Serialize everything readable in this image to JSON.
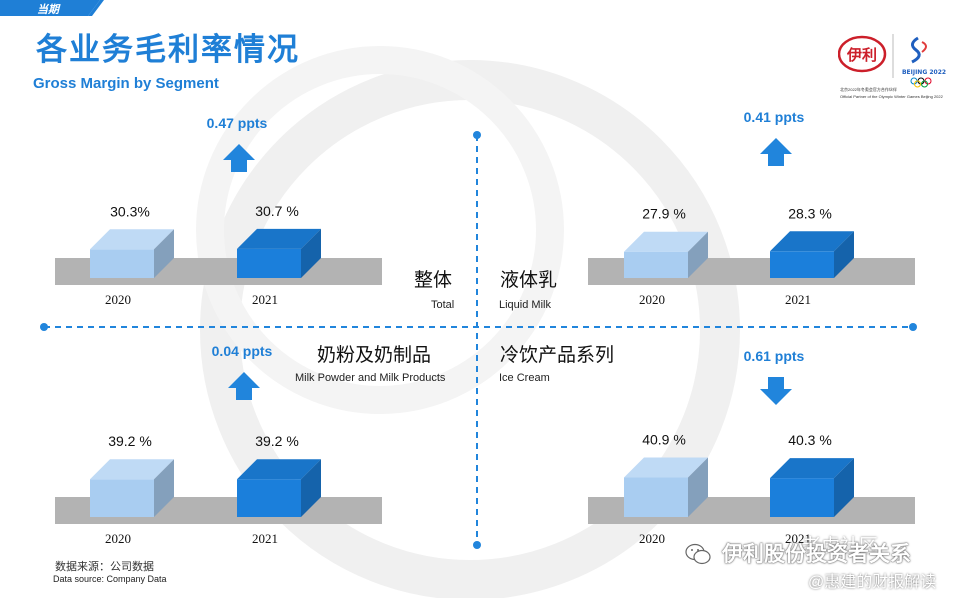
{
  "header": {
    "tag": "当期",
    "title_cn": "各业务毛利率情况",
    "title_en": "Gross Margin by Segment"
  },
  "logo": {
    "brand_text": "伊利",
    "partner_text": "BEIJING 2022",
    "caption_cn": "北京2022年冬奥会官方合作伙伴",
    "caption_en": "Official Partner of the Olympic Winter Games Beijing 2022"
  },
  "source": {
    "cn": "数据来源：公司数据",
    "en": "Data source: Company Data"
  },
  "watermark": {
    "line1": "伊利股份投资者关系",
    "line2": "老虎社区",
    "line3": "@惠建的财报解读"
  },
  "colors": {
    "bar_2020": "#a9cdf1",
    "bar_2021": "#1b7fdb",
    "arrow": "#2185dc",
    "base": "#b3b3b3",
    "accent": "#1f7fd6"
  },
  "chart_data": [
    {
      "type": "bar",
      "segment_cn": "整体",
      "segment_en": "Total",
      "categories": [
        "2020",
        "2021"
      ],
      "values": [
        30.3,
        30.7
      ],
      "labels": [
        "30.3%",
        "30.7 %"
      ],
      "change": 0.47,
      "change_label": "0.47 ppts",
      "direction": "up"
    },
    {
      "type": "bar",
      "segment_cn": "液体乳",
      "segment_en": "Liquid Milk",
      "categories": [
        "2020",
        "2021"
      ],
      "values": [
        27.9,
        28.3
      ],
      "labels": [
        "27.9 %",
        "28.3 %"
      ],
      "change": 0.41,
      "change_label": "0.41 ppts",
      "direction": "up"
    },
    {
      "type": "bar",
      "segment_cn": "奶粉及奶制品",
      "segment_en": "Milk Powder and Milk Products",
      "categories": [
        "2020",
        "2021"
      ],
      "values": [
        39.2,
        39.2
      ],
      "labels": [
        "39.2 %",
        "39.2 %"
      ],
      "change": 0.04,
      "change_label": "0.04 ppts",
      "direction": "up"
    },
    {
      "type": "bar",
      "segment_cn": "冷饮产品系列",
      "segment_en": "Ice Cream",
      "categories": [
        "2020",
        "2021"
      ],
      "values": [
        40.9,
        40.3
      ],
      "labels": [
        "40.9 %",
        "40.3 %"
      ],
      "change": 0.61,
      "change_label": "0.61 ppts",
      "direction": "down"
    }
  ]
}
